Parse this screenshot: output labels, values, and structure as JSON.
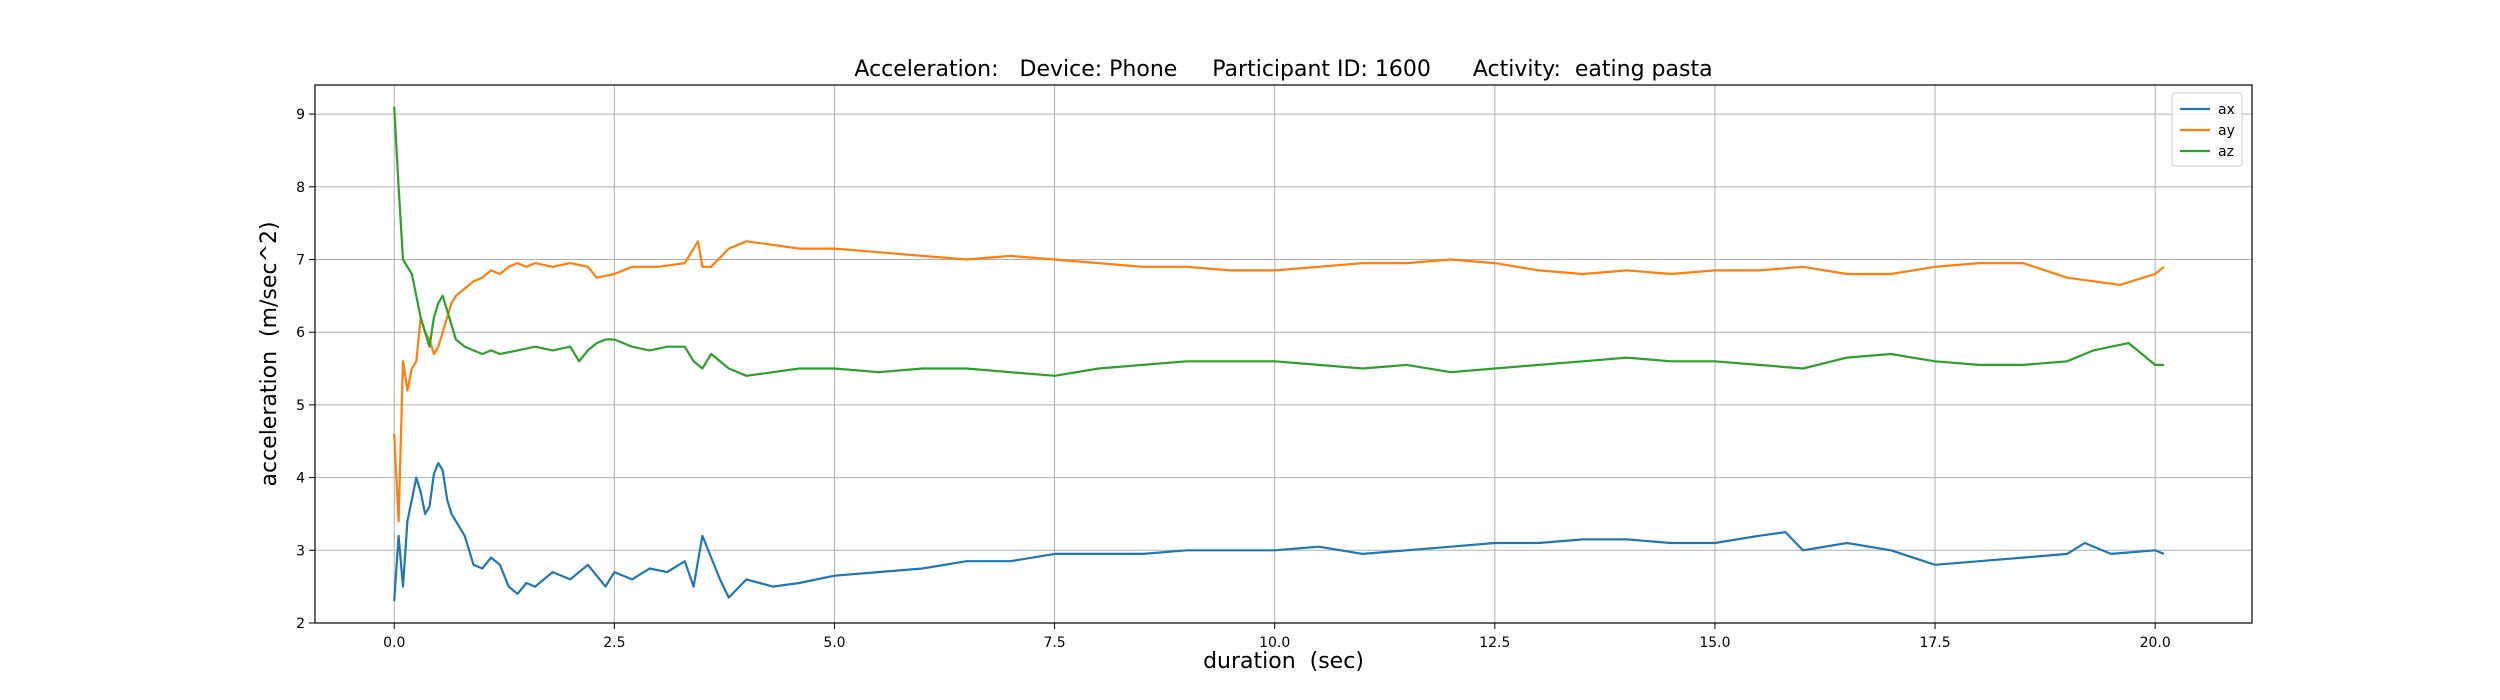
{
  "chart_data": {
    "type": "line",
    "title": "Acceleration:   Device: Phone     Participant ID: 1600      Activity:  eating pasta",
    "xlabel": "duration  (sec)",
    "ylabel": "acceleration  (m/sec^2)",
    "xlim": [
      -0.9,
      21.1
    ],
    "ylim": [
      2.0,
      9.4
    ],
    "xticks": [
      0.0,
      2.5,
      5.0,
      7.5,
      10.0,
      12.5,
      15.0,
      17.5,
      20.0
    ],
    "xtick_labels": [
      "0.0",
      "2.5",
      "5.0",
      "7.5",
      "10.0",
      "12.5",
      "15.0",
      "17.5",
      "20.0"
    ],
    "yticks": [
      2,
      3,
      4,
      5,
      6,
      7,
      8,
      9
    ],
    "ytick_labels": [
      "2",
      "3",
      "4",
      "5",
      "6",
      "7",
      "8",
      "9"
    ],
    "grid": true,
    "legend_position": "top-right",
    "series": [
      {
        "name": "ax",
        "color": "#1f77b4",
        "x": [
          0.0,
          0.05,
          0.1,
          0.15,
          0.2,
          0.25,
          0.3,
          0.35,
          0.4,
          0.45,
          0.5,
          0.55,
          0.6,
          0.65,
          0.7,
          0.8,
          0.9,
          1.0,
          1.1,
          1.2,
          1.3,
          1.4,
          1.5,
          1.6,
          1.8,
          2.0,
          2.2,
          2.4,
          2.5,
          2.7,
          2.9,
          3.1,
          3.3,
          3.4,
          3.5,
          3.6,
          3.7,
          3.8,
          4.0,
          4.3,
          4.6,
          5.0,
          5.5,
          6.0,
          6.5,
          7.0,
          7.5,
          8.0,
          8.5,
          9.0,
          9.5,
          10.0,
          10.5,
          11.0,
          11.5,
          12.0,
          12.5,
          13.0,
          13.5,
          14.0,
          14.5,
          15.0,
          15.5,
          15.8,
          16.0,
          16.5,
          17.0,
          17.5,
          18.0,
          18.5,
          19.0,
          19.2,
          19.5,
          20.0,
          20.1
        ],
        "values": [
          2.3,
          3.2,
          2.5,
          3.4,
          3.7,
          4.0,
          3.8,
          3.5,
          3.6,
          4.05,
          4.2,
          4.1,
          3.7,
          3.5,
          3.4,
          3.2,
          2.8,
          2.75,
          2.9,
          2.8,
          2.5,
          2.4,
          2.55,
          2.5,
          2.7,
          2.6,
          2.8,
          2.5,
          2.7,
          2.6,
          2.75,
          2.7,
          2.85,
          2.5,
          3.2,
          2.9,
          2.6,
          2.35,
          2.6,
          2.5,
          2.55,
          2.65,
          2.7,
          2.75,
          2.85,
          2.85,
          2.95,
          2.95,
          2.95,
          3.0,
          3.0,
          3.0,
          3.05,
          2.95,
          3.0,
          3.05,
          3.1,
          3.1,
          3.15,
          3.15,
          3.1,
          3.1,
          3.2,
          3.25,
          3.0,
          3.1,
          3.0,
          2.8,
          2.85,
          2.9,
          2.95,
          3.1,
          2.95,
          3.0,
          2.95
        ]
      },
      {
        "name": "ay",
        "color": "#ff7f0e",
        "x": [
          0.0,
          0.05,
          0.1,
          0.15,
          0.2,
          0.25,
          0.3,
          0.35,
          0.4,
          0.45,
          0.5,
          0.55,
          0.6,
          0.65,
          0.7,
          0.8,
          0.9,
          1.0,
          1.1,
          1.2,
          1.3,
          1.4,
          1.5,
          1.6,
          1.8,
          2.0,
          2.2,
          2.3,
          2.5,
          2.7,
          3.0,
          3.3,
          3.45,
          3.5,
          3.6,
          3.8,
          4.0,
          4.3,
          4.6,
          5.0,
          5.5,
          6.0,
          6.5,
          7.0,
          7.5,
          8.0,
          8.5,
          9.0,
          9.5,
          10.0,
          10.5,
          11.0,
          11.5,
          12.0,
          12.5,
          13.0,
          13.5,
          14.0,
          14.5,
          15.0,
          15.5,
          16.0,
          16.5,
          17.0,
          17.5,
          18.0,
          18.5,
          19.0,
          19.3,
          19.6,
          20.0,
          20.1
        ],
        "values": [
          4.6,
          3.4,
          5.6,
          5.2,
          5.5,
          5.6,
          6.2,
          6.0,
          5.9,
          5.7,
          5.8,
          6.0,
          6.2,
          6.4,
          6.5,
          6.6,
          6.7,
          6.75,
          6.85,
          6.8,
          6.9,
          6.95,
          6.9,
          6.95,
          6.9,
          6.95,
          6.9,
          6.75,
          6.8,
          6.9,
          6.9,
          6.95,
          7.25,
          6.9,
          6.9,
          7.15,
          7.25,
          7.2,
          7.15,
          7.15,
          7.1,
          7.05,
          7.0,
          7.05,
          7.0,
          6.95,
          6.9,
          6.9,
          6.85,
          6.85,
          6.9,
          6.95,
          6.95,
          7.0,
          6.95,
          6.85,
          6.8,
          6.85,
          6.8,
          6.85,
          6.85,
          6.9,
          6.8,
          6.8,
          6.9,
          6.95,
          6.95,
          6.75,
          6.7,
          6.65,
          6.8,
          6.9
        ]
      },
      {
        "name": "az",
        "color": "#2ca02c",
        "x": [
          0.0,
          0.05,
          0.1,
          0.15,
          0.2,
          0.25,
          0.3,
          0.35,
          0.4,
          0.45,
          0.5,
          0.55,
          0.6,
          0.65,
          0.7,
          0.8,
          0.9,
          1.0,
          1.1,
          1.2,
          1.4,
          1.6,
          1.8,
          2.0,
          2.1,
          2.2,
          2.3,
          2.4,
          2.5,
          2.7,
          2.9,
          3.1,
          3.3,
          3.4,
          3.5,
          3.6,
          3.8,
          4.0,
          4.3,
          4.6,
          5.0,
          5.5,
          6.0,
          6.5,
          7.0,
          7.5,
          8.0,
          8.5,
          9.0,
          9.5,
          10.0,
          10.5,
          11.0,
          11.5,
          12.0,
          12.5,
          13.0,
          13.5,
          14.0,
          14.5,
          15.0,
          15.5,
          16.0,
          16.5,
          17.0,
          17.5,
          18.0,
          18.5,
          19.0,
          19.3,
          19.5,
          19.7,
          20.0,
          20.1
        ],
        "values": [
          9.1,
          8.0,
          7.0,
          6.9,
          6.8,
          6.5,
          6.2,
          6.0,
          5.8,
          6.2,
          6.4,
          6.5,
          6.3,
          6.1,
          5.9,
          5.8,
          5.75,
          5.7,
          5.75,
          5.7,
          5.75,
          5.8,
          5.75,
          5.8,
          5.6,
          5.75,
          5.85,
          5.9,
          5.9,
          5.8,
          5.75,
          5.8,
          5.8,
          5.6,
          5.5,
          5.7,
          5.5,
          5.4,
          5.45,
          5.5,
          5.5,
          5.45,
          5.5,
          5.5,
          5.45,
          5.4,
          5.5,
          5.55,
          5.6,
          5.6,
          5.6,
          5.55,
          5.5,
          5.55,
          5.45,
          5.5,
          5.55,
          5.6,
          5.65,
          5.6,
          5.6,
          5.55,
          5.5,
          5.65,
          5.7,
          5.6,
          5.55,
          5.55,
          5.6,
          5.75,
          5.8,
          5.85,
          5.55,
          5.55
        ]
      }
    ]
  }
}
